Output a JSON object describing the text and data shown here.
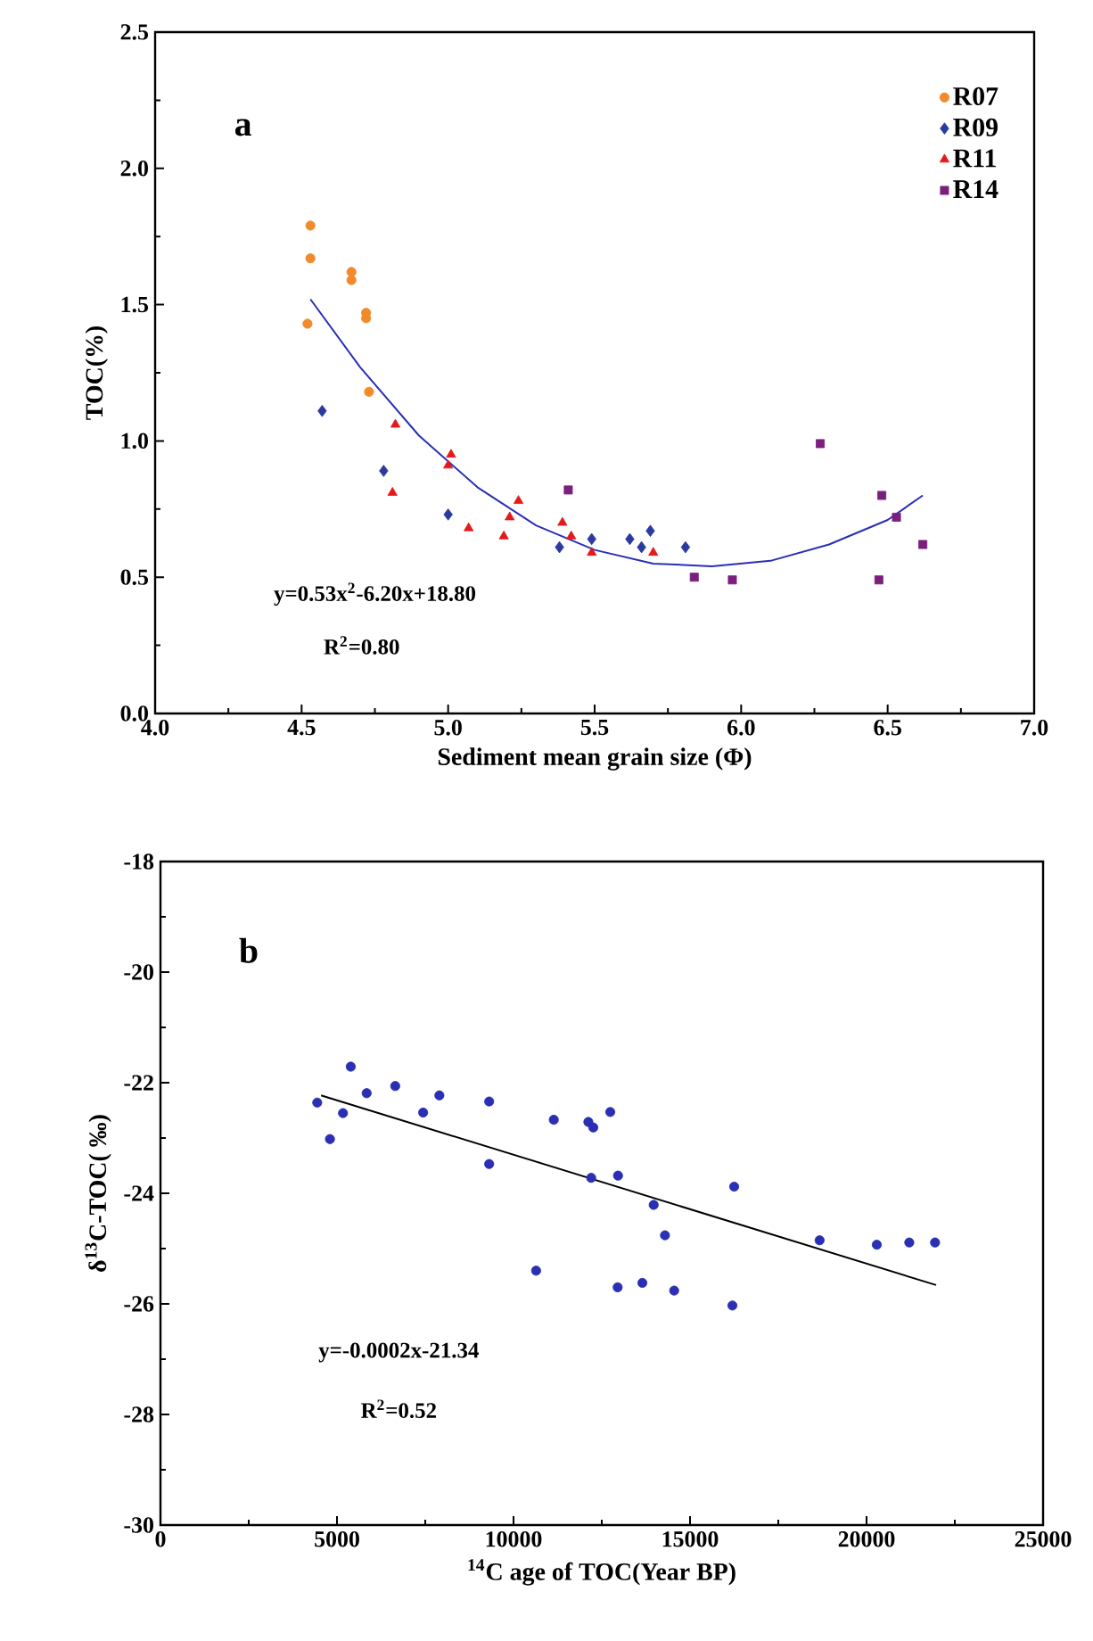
{
  "chart_data": [
    {
      "type": "scatter",
      "xlabel": "Sediment mean grain size (Φ)",
      "ylabel": "TOC(%)",
      "xlim": [
        4.0,
        7.0
      ],
      "ylim": [
        0.0,
        2.5
      ],
      "xticks": [
        {
          "value": 4.0,
          "label": "4.0"
        },
        {
          "value": 4.5,
          "label": "4.5"
        },
        {
          "value": 5.0,
          "label": "5.0"
        },
        {
          "value": 5.5,
          "label": "5.5"
        },
        {
          "value": 6.0,
          "label": "6.0"
        },
        {
          "value": 6.5,
          "label": "6.5"
        },
        {
          "value": 7.0,
          "label": "7.0"
        }
      ],
      "yticks": [
        {
          "value": 0.0,
          "label": "0.0"
        },
        0.5,
        {
          "value": 1.0,
          "label": "1.0"
        },
        1.5,
        {
          "value": 2.0,
          "label": "2.0"
        },
        2.5
      ],
      "grid": false,
      "legend": "top right",
      "annotations": [
        "a",
        "y=0.53x$^{2}$-6.20x+18.80",
        "R$^{2}$=0.80"
      ],
      "series": [
        {
          "name": "R07",
          "color": "#f08a2c",
          "marker": "circle",
          "x": [
            4.53,
            4.53,
            4.52,
            4.67,
            4.67,
            4.72,
            4.72,
            4.73
          ],
          "values": [
            1.79,
            1.67,
            1.43,
            1.62,
            1.59,
            1.47,
            1.45,
            1.18
          ]
        },
        {
          "name": "R09",
          "color": "#2b3aa0",
          "marker": "diamond",
          "x": [
            4.57,
            4.78,
            5.0,
            5.38,
            5.49,
            5.62,
            5.66,
            5.69,
            5.81
          ],
          "values": [
            1.11,
            0.89,
            0.73,
            0.61,
            0.64,
            0.64,
            0.61,
            0.67,
            0.61
          ]
        },
        {
          "name": "R11",
          "color": "#e5191b",
          "marker": "triangle",
          "x": [
            4.82,
            4.81,
            5.01,
            5.0,
            5.07,
            5.19,
            5.21,
            5.24,
            5.39,
            5.42,
            5.49,
            5.7
          ],
          "values": [
            1.06,
            0.81,
            0.95,
            0.91,
            0.68,
            0.65,
            0.72,
            0.78,
            0.7,
            0.65,
            0.59,
            0.59
          ]
        },
        {
          "name": "R14",
          "color": "#7a1f7e",
          "marker": "square",
          "x": [
            5.41,
            5.84,
            5.97,
            6.27,
            6.48,
            6.53,
            6.47,
            6.62
          ],
          "values": [
            0.82,
            0.5,
            0.49,
            0.99,
            0.8,
            0.72,
            0.49,
            0.62
          ]
        },
        {
          "type": "line",
          "color": "#2a2fb5",
          "marker": "none",
          "x": [
            4.53,
            4.7,
            4.9,
            5.1,
            5.3,
            5.5,
            5.7,
            5.9,
            6.1,
            6.3,
            6.5,
            6.62
          ],
          "values": [
            1.52,
            1.27,
            1.02,
            0.83,
            0.69,
            0.6,
            0.55,
            0.54,
            0.56,
            0.62,
            0.71,
            0.8
          ]
        }
      ]
    },
    {
      "type": "scatter",
      "xlabel": "$^{14}$C age of TOC(Year BP)",
      "ylabel": "δ$^{13}$C-TOC( ‰)",
      "xlim": [
        0,
        25000
      ],
      "ylim": [
        -30,
        -18
      ],
      "xticks": [
        0,
        5000,
        10000,
        15000,
        20000,
        25000
      ],
      "yticks": [
        -30,
        -28,
        -26,
        -24,
        -22,
        -20,
        -18
      ],
      "grid": false,
      "annotations": [
        "b",
        "y=-0.0002x-21.34",
        "R$^{2}$=0.52"
      ],
      "series": [
        {
          "color": "#2b2fb3",
          "marker": "circle",
          "x": [
            4440,
            4800,
            5170,
            5390,
            5840,
            6650,
            7440,
            7900,
            9310,
            9310,
            10640,
            11140,
            12120,
            12260,
            12740,
            12200,
            12960,
            12950,
            13650,
            13970,
            14290,
            14550,
            16250,
            16200,
            18670,
            20290,
            21210,
            21940
          ],
          "values": [
            -22.36,
            -23.02,
            -22.55,
            -21.71,
            -22.19,
            -22.06,
            -22.54,
            -22.23,
            -22.34,
            -23.47,
            -25.4,
            -22.67,
            -22.71,
            -22.81,
            -22.53,
            -23.72,
            -23.68,
            -25.7,
            -25.62,
            -24.21,
            -24.76,
            -25.76,
            -23.88,
            -26.03,
            -24.85,
            -24.93,
            -24.89,
            -24.89
          ]
        },
        {
          "type": "line",
          "color": "#000000",
          "marker": "none",
          "x": [
            4550,
            21970
          ],
          "values": [
            -22.23,
            -25.66
          ]
        }
      ]
    }
  ]
}
